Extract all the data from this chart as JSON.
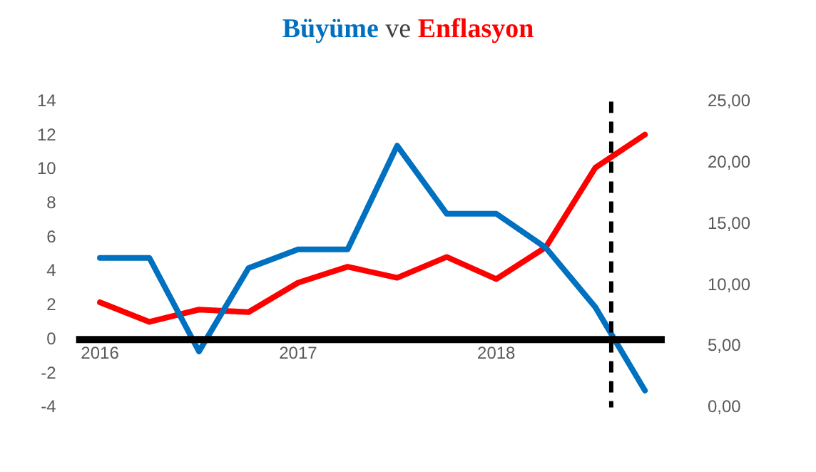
{
  "chart_data": {
    "type": "line",
    "title": "Büyüme ve Enflasyon",
    "x": [
      2016,
      2016.25,
      2016.5,
      2016.75,
      2017,
      2017.25,
      2017.5,
      2017.75,
      2018,
      2018.25,
      2018.5,
      2018.75
    ],
    "xlim": [
      2015.88,
      2018.85
    ],
    "xticks": [
      2016,
      2017,
      2018
    ],
    "ylim": [
      -4,
      14
    ],
    "yticks": [
      -4,
      -2,
      0,
      2,
      4,
      6,
      8,
      10,
      12,
      14
    ],
    "y2lim": [
      0,
      25
    ],
    "y2ticks": [
      {
        "value": 0,
        "label": "0,00"
      },
      {
        "value": 5,
        "label": "5,00"
      },
      {
        "value": 10,
        "label": "10,00"
      },
      {
        "value": 15,
        "label": "15,00"
      },
      {
        "value": 20,
        "label": "20,00"
      },
      {
        "value": 25,
        "label": "25,00"
      }
    ],
    "series": [
      {
        "color": "#0070c0",
        "values": [
          4.8,
          4.8,
          -0.7,
          4.2,
          5.3,
          5.3,
          11.4,
          7.4,
          7.4,
          5.4,
          1.9,
          -3.0
        ]
      },
      {
        "color": "#ff0000",
        "axis": "y2",
        "values": [
          8.6,
          7.0,
          8.0,
          7.8,
          10.2,
          11.5,
          10.6,
          12.3,
          10.5,
          13.1,
          19.6,
          22.3
        ]
      }
    ],
    "ref_lines": [
      {
        "axis": "x",
        "value": 2018.58,
        "color": "#000000",
        "line_style": "dashed"
      }
    ],
    "grid": false,
    "legend": false,
    "marker": "none",
    "line_style": "solid"
  }
}
